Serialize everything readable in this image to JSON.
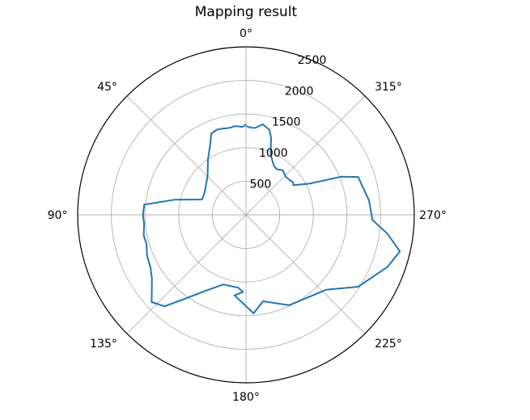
{
  "chart_data": {
    "type": "line",
    "projection": "polar",
    "title": "Mapping result",
    "theta_zero_location": "top",
    "theta_direction": "counter-clockwise",
    "theta_tick_labels": [
      "0°",
      "45°",
      "90°",
      "135°",
      "180°",
      "225°",
      "270°",
      "315°"
    ],
    "theta_tick_degrees": [
      0,
      45,
      90,
      135,
      180,
      225,
      270,
      315
    ],
    "r_ticks": [
      500,
      1000,
      1500,
      2000,
      2500
    ],
    "r_tick_labels": [
      "500",
      "1000",
      "1500",
      "2000",
      "2500"
    ],
    "rlim": [
      0,
      2500
    ],
    "grid": true,
    "line_color": "#1f77b4",
    "series": [
      {
        "theta_deg": [
          0,
          1.2,
          2.6,
          4.7,
          7.2,
          9.5,
          12.5,
          15.2,
          18.8,
          23.1,
          27,
          30.1,
          34.4,
          38.6,
          44.8,
          61.4,
          70.7,
          78.1,
          84.3,
          90,
          95.2,
          101.4,
          106.5,
          112.4,
          118.9,
          124.3,
          132.8,
          138.4,
          143.6,
          151.6,
          162,
          173.9,
          177.9,
          171.9,
          184.4,
          191.1,
          205.5,
          226.8,
          237.3,
          249.8,
          256.6,
          262.4,
          267.7,
          276.8,
          283.9,
          288.7,
          291.9,
          296.2,
          302.1,
          304.4,
          308.6,
          313.8,
          320.5,
          325.4,
          329.4,
          333.1,
          336.8,
          339.3,
          341.9,
          344.5,
          349.5,
          354,
          356.2,
          358.3,
          359.8
        ],
        "r": [
          1350,
          1320,
          1310,
          1320,
          1330,
          1320,
          1320,
          1330,
          1340,
          1315,
          1170,
          1090,
          1000,
          910,
          810,
          700,
          690,
          1090,
          1520,
          1530,
          1520,
          1550,
          1540,
          1590,
          1620,
          1690,
          1910,
          1820,
          1560,
          1290,
          1090,
          1090,
          1150,
          1210,
          1470,
          1310,
          1490,
          1630,
          1980,
          2240,
          2350,
          2120,
          1880,
          1840,
          1780,
          1760,
          1520,
          1050,
          830,
          850,
          830,
          820,
          860,
          820,
          830,
          880,
          950,
          1040,
          1200,
          1310,
          1370,
          1300,
          1300,
          1310,
          1320
        ]
      }
    ]
  }
}
